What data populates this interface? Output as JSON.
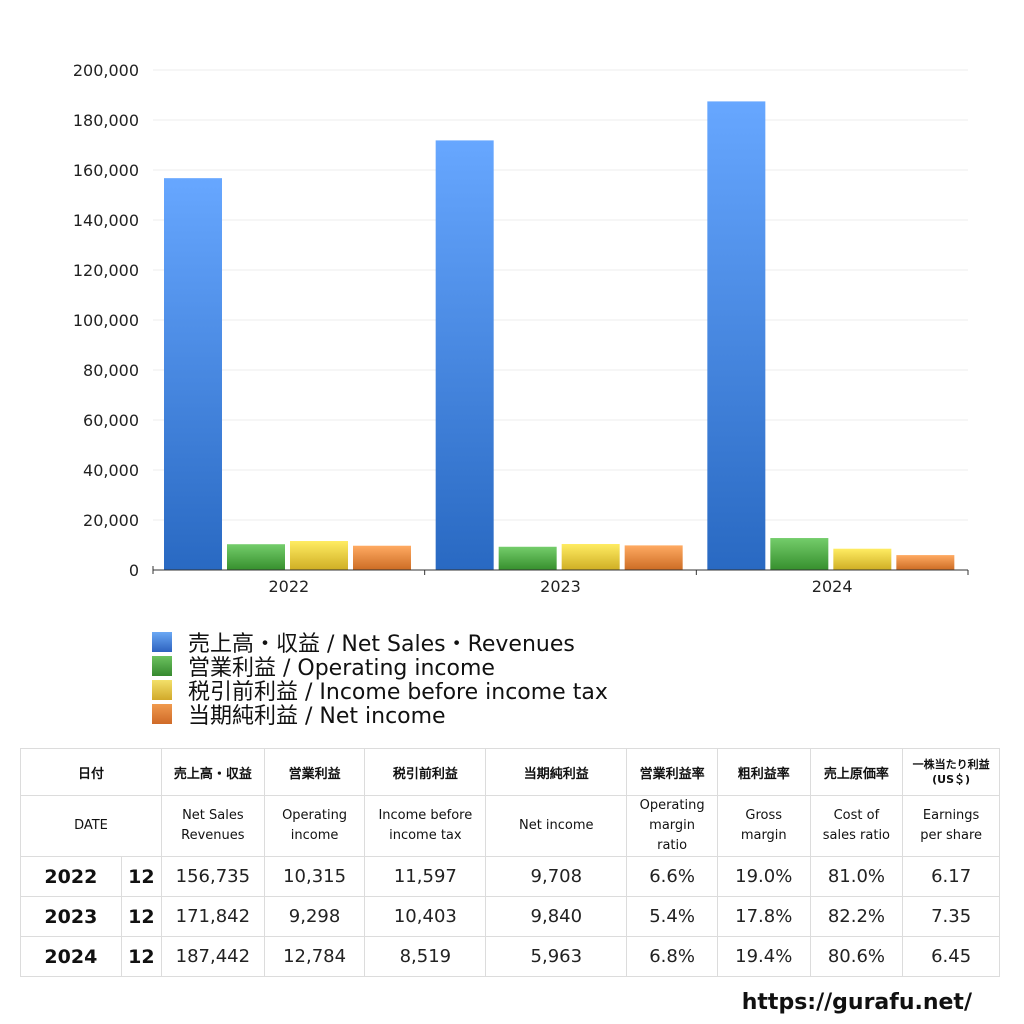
{
  "chart_data": {
    "type": "bar",
    "categories": [
      "2022",
      "2023",
      "2024"
    ],
    "series": [
      {
        "name": "売上高・収益 / Net Sales・Revenues",
        "color": "#3f7fd8",
        "values": [
          156735,
          171842,
          187442
        ]
      },
      {
        "name": "営業利益 / Operating income",
        "color": "#4ca543",
        "values": [
          10315,
          9298,
          12784
        ]
      },
      {
        "name": "税引前利益 / Income before income tax",
        "color": "#e5c43a",
        "values": [
          11597,
          10403,
          8519
        ]
      },
      {
        "name": "当期純利益 / Net income",
        "color": "#e2823a",
        "values": [
          9708,
          9840,
          5963
        ]
      }
    ],
    "ylim": [
      0,
      200000
    ],
    "yticks": [
      "200,000",
      "180,000",
      "160,000",
      "140,000",
      "120,000",
      "100,000",
      "80,000",
      "60,000",
      "40,000",
      "20,000",
      "0"
    ],
    "grid": true,
    "legend_position": "bottom"
  },
  "table": {
    "header_ja": [
      "日付",
      "売上高・収益",
      "営業利益",
      "税引前利益",
      "当期純利益",
      "営業利益率",
      "粗利益率",
      "売上原価率",
      "一株当たり利益\n(US＄)"
    ],
    "header_en": [
      "DATE",
      "Net Sales\nRevenues",
      "Operating\nincome",
      "Income before\nincome tax",
      "Net income",
      "Operating\nmargin\nratio",
      "Gross\nmargin",
      "Cost of\nsales ratio",
      "Earnings\nper share"
    ],
    "rows": [
      {
        "year": "2022",
        "month": "12",
        "values": [
          "156,735",
          "10,315",
          "11,597",
          "9,708",
          "6.6%",
          "19.0%",
          "81.0%",
          "6.17"
        ]
      },
      {
        "year": "2023",
        "month": "12",
        "values": [
          "171,842",
          "9,298",
          "10,403",
          "9,840",
          "5.4%",
          "17.8%",
          "82.2%",
          "7.35"
        ]
      },
      {
        "year": "2024",
        "month": "12",
        "values": [
          "187,442",
          "12,784",
          "8,519",
          "5,963",
          "6.8%",
          "19.4%",
          "80.6%",
          "6.45"
        ]
      }
    ]
  },
  "watermark": "https://gurafu.net/"
}
